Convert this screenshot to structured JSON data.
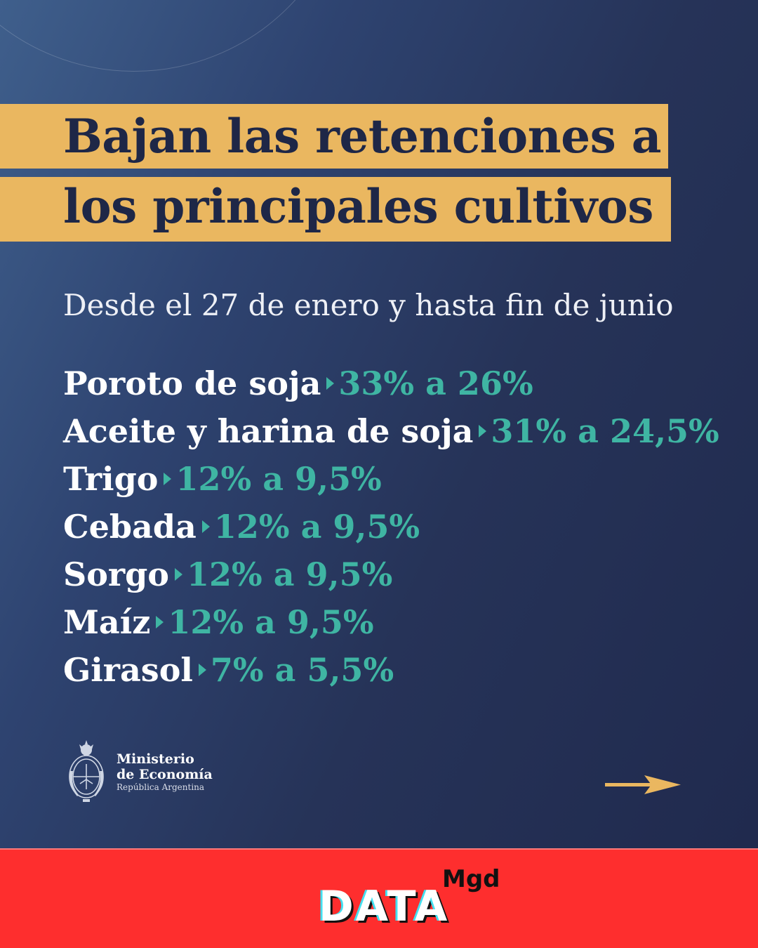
{
  "title_lines": [
    "Bajan las retenciones a",
    "los principales cultivos"
  ],
  "subtitle": "Desde el 27 de enero y hasta fin de junio",
  "crops": [
    {
      "name": "Poroto de soja",
      "rate": "33% a 26%"
    },
    {
      "name": "Aceite y harina de soja",
      "rate": "31% a 24,5%"
    },
    {
      "name": "Trigo",
      "rate": "12% a 9,5%"
    },
    {
      "name": "Cebada",
      "rate": "12% a 9,5%"
    },
    {
      "name": "Sorgo",
      "rate": "12% a 9,5%"
    },
    {
      "name": "Maíz",
      "rate": "12% a 9,5%"
    },
    {
      "name": "Girasol",
      "rate": "7% a 5,5%"
    }
  ],
  "ministry": {
    "line1": "Ministerio",
    "line2": "de Economía",
    "line3": "República Argentina"
  },
  "footer": {
    "brand": "DATA",
    "superscript": "Mgd"
  },
  "colors": {
    "background": "#263358",
    "title_band": "#eab760",
    "accent_rate": "#3fb5a3",
    "footer": "#fe2e2e",
    "arrow": "#eab760"
  },
  "icons": [
    "ministry-emblem-icon",
    "next-arrow-icon",
    "caret-right-icon"
  ]
}
